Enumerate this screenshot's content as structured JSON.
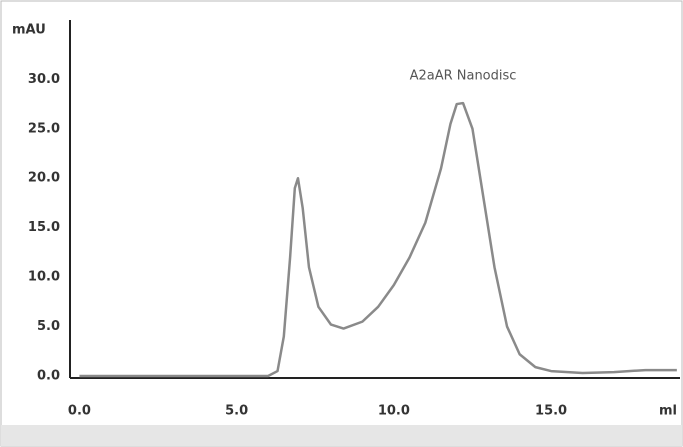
{
  "chart_data": {
    "type": "line",
    "annotation": "A2aAR Nanodisc",
    "x_label": "ml",
    "y_label": "mAU",
    "x": [
      0,
      6.0,
      6.3,
      6.5,
      6.7,
      6.85,
      6.95,
      7.1,
      7.3,
      7.6,
      8.0,
      8.4,
      9.0,
      9.5,
      10.0,
      10.5,
      11.0,
      11.5,
      11.8,
      12.0,
      12.2,
      12.5,
      12.8,
      13.2,
      13.6,
      14.0,
      14.5,
      15.0,
      16.0,
      17.0,
      18.0,
      19.0
    ],
    "series": [
      {
        "color": "#8a8a8a",
        "values": [
          0,
          0,
          0.5,
          4,
          12,
          19,
          20,
          17,
          11,
          7,
          5.2,
          4.8,
          5.5,
          7,
          9.2,
          12,
          15.5,
          21,
          25.5,
          27.5,
          27.6,
          25,
          19,
          11,
          5,
          2.2,
          0.9,
          0.5,
          0.3,
          0.4,
          0.6,
          0.6
        ]
      }
    ],
    "xlim": [
      -0.3,
      19.1
    ],
    "ylim": [
      -0.2,
      36
    ],
    "xticks": [
      {
        "value": 0,
        "label": "0.0"
      },
      {
        "value": 5,
        "label": "5.0"
      },
      {
        "value": 10,
        "label": "10.0"
      },
      {
        "value": 15,
        "label": "15.0"
      }
    ],
    "yticks": [
      {
        "value": 0,
        "label": "0.0"
      },
      {
        "value": 5,
        "label": "5.0"
      },
      {
        "value": 10,
        "label": "10.0"
      },
      {
        "value": 15,
        "label": "15.0"
      },
      {
        "value": 20,
        "label": "20.0"
      },
      {
        "value": 25,
        "label": "25.0"
      },
      {
        "value": 30,
        "label": "30.0"
      }
    ]
  }
}
